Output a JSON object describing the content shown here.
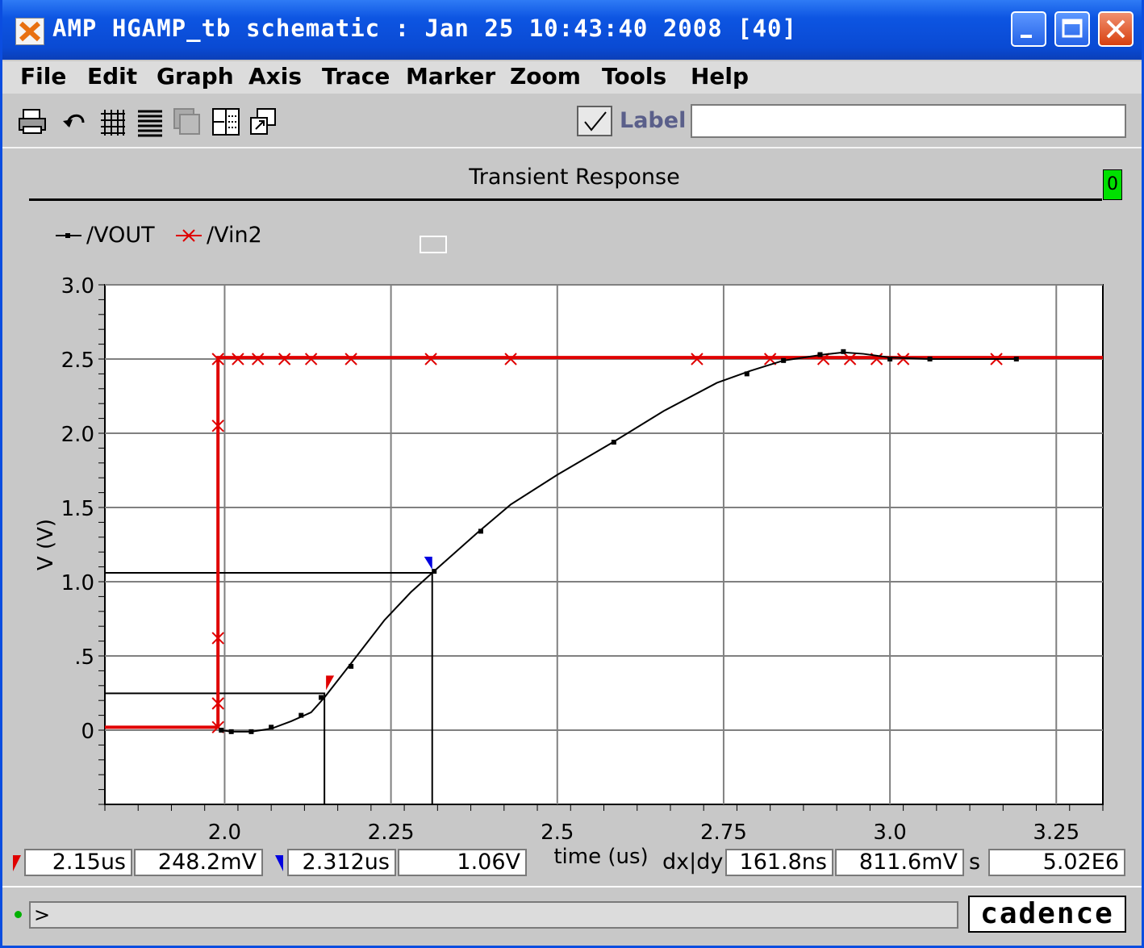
{
  "window": {
    "title": "AMP HGAMP_tb schematic : Jan 25 10:43:40 2008 [40]"
  },
  "menu": [
    "File",
    "Edit",
    "Graph",
    "Axis",
    "Trace",
    "Marker",
    "Zoom",
    "Tools",
    "Help"
  ],
  "toolbar": {
    "icons": [
      "printer-icon",
      "undo-icon",
      "grid-icon",
      "strip-icon",
      "overlay-icon",
      "split-icon",
      "subwindow-icon"
    ],
    "label_text": "Label",
    "label_value": ""
  },
  "graph_badge": "0",
  "legend": {
    "vout": "/VOUT",
    "vin2": "/Vin2"
  },
  "colors": {
    "vout": "#000000",
    "vin2": "#e00000",
    "marker_a": "#e00000",
    "marker_b": "#0000e0"
  },
  "chart_data": {
    "type": "line",
    "title": "Transient Response",
    "xlabel": "time (us)",
    "ylabel": "V (V)",
    "xlim": [
      1.82,
      3.32
    ],
    "ylim": [
      -0.5,
      3.0
    ],
    "xticks": [
      {
        "v": 2.0,
        "label": "2.0"
      },
      {
        "v": 2.25,
        "label": "2.25"
      },
      {
        "v": 2.5,
        "label": "2.5"
      },
      {
        "v": 2.75,
        "label": "2.75"
      },
      {
        "v": 3.0,
        "label": "3.0"
      },
      {
        "v": 3.25,
        "label": "3.25"
      }
    ],
    "yticks": [
      {
        "v": 3.0,
        "label": "3.0"
      },
      {
        "v": 2.5,
        "label": "2.5"
      },
      {
        "v": 2.0,
        "label": "2.0"
      },
      {
        "v": 1.5,
        "label": "1.5"
      },
      {
        "v": 1.0,
        "label": "1.0"
      },
      {
        "v": 0.5,
        "label": ".5"
      },
      {
        "v": 0.0,
        "label": "0"
      }
    ],
    "grid": true,
    "series": [
      {
        "name": "/VOUT",
        "x": [
          1.995,
          2.01,
          2.04,
          2.07,
          2.1,
          2.13,
          2.15,
          2.19,
          2.24,
          2.28,
          2.312,
          2.38,
          2.43,
          2.5,
          2.58,
          2.66,
          2.74,
          2.79,
          2.84,
          2.9,
          2.93,
          2.96,
          3.0,
          3.06,
          3.19
        ],
        "y": [
          0.0,
          -0.01,
          -0.01,
          0.01,
          0.06,
          0.12,
          0.22,
          0.45,
          0.74,
          0.93,
          1.06,
          1.33,
          1.52,
          1.72,
          1.93,
          2.15,
          2.34,
          2.42,
          2.49,
          2.53,
          2.545,
          2.535,
          2.51,
          2.5,
          2.5
        ],
        "points_x": [
          1.995,
          2.01,
          2.04,
          2.07,
          2.115,
          2.145,
          2.19,
          2.315,
          2.385,
          2.585,
          2.785,
          2.84,
          2.895,
          2.93,
          3.0,
          3.06,
          3.19
        ],
        "points_y": [
          0.0,
          -0.01,
          -0.01,
          0.02,
          0.1,
          0.22,
          0.43,
          1.07,
          1.34,
          1.94,
          2.4,
          2.49,
          2.53,
          2.55,
          2.5,
          2.5,
          2.5
        ]
      },
      {
        "name": "/Vin2",
        "x": [
          1.82,
          1.99,
          1.99,
          3.32
        ],
        "y": [
          0.02,
          0.02,
          2.51,
          2.51
        ],
        "points_x": [
          1.99,
          1.99,
          1.99,
          1.99,
          1.99,
          2.02,
          2.05,
          2.09,
          2.13,
          2.19,
          2.31,
          2.43,
          2.71,
          2.82,
          2.9,
          2.94,
          2.98,
          3.02,
          3.16
        ],
        "points_y": [
          0.02,
          0.18,
          0.62,
          2.05,
          2.5,
          2.5,
          2.5,
          2.5,
          2.5,
          2.5,
          2.5,
          2.5,
          2.5,
          2.5,
          2.5,
          2.5,
          2.5,
          2.5,
          2.5
        ]
      }
    ],
    "markers": [
      {
        "id": "A",
        "x": 2.15,
        "y": 0.2482
      },
      {
        "id": "B",
        "x": 2.312,
        "y": 1.06
      }
    ]
  },
  "status": {
    "marker_a_x": "2.15us",
    "marker_a_y": "248.2mV",
    "marker_b_x": "2.312us",
    "marker_b_y": "1.06V",
    "dxdy_label": "dx|dy",
    "dx": "161.8ns",
    "dy": "811.6mV",
    "s_label": "s",
    "slope": "5.02E6"
  },
  "command": {
    "prompt": ">"
  },
  "logo": "cadence"
}
